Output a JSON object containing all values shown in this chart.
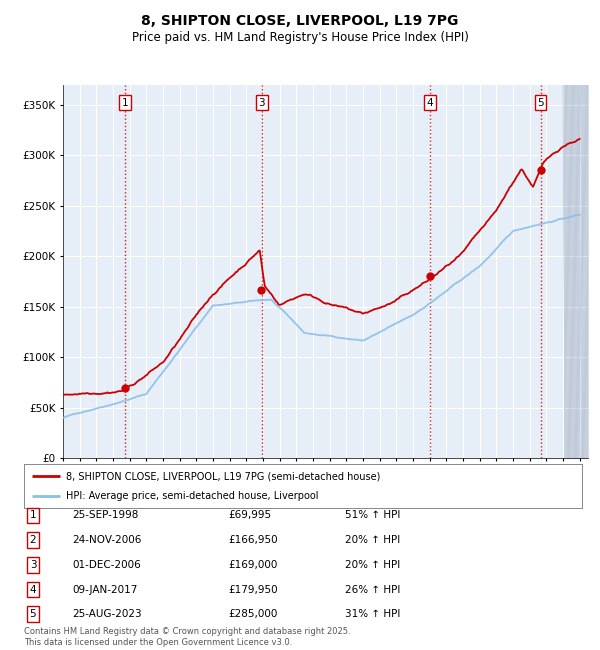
{
  "title": "8, SHIPTON CLOSE, LIVERPOOL, L19 7PG",
  "subtitle": "Price paid vs. HM Land Registry's House Price Index (HPI)",
  "legend_line1": "8, SHIPTON CLOSE, LIVERPOOL, L19 7PG (semi-detached house)",
  "legend_line2": "HPI: Average price, semi-detached house, Liverpool",
  "footer": "Contains HM Land Registry data © Crown copyright and database right 2025.\nThis data is licensed under the Open Government Licence v3.0.",
  "hpi_color": "#8ABFE8",
  "price_color": "#CC0000",
  "background_color": "#E6EEF8",
  "ylim": [
    0,
    370000
  ],
  "yticks": [
    0,
    50000,
    100000,
    150000,
    200000,
    250000,
    300000,
    350000
  ],
  "ytick_labels": [
    "£0",
    "£50K",
    "£100K",
    "£150K",
    "£200K",
    "£250K",
    "£300K",
    "£350K"
  ],
  "x_start_year": 1995,
  "x_end_year": 2026,
  "vline_sales": [
    {
      "num": 1,
      "year": 1998.73
    },
    {
      "num": 3,
      "year": 2006.92
    },
    {
      "num": 4,
      "year": 2017.03
    },
    {
      "num": 5,
      "year": 2023.65
    }
  ],
  "sale_dots": [
    {
      "year": 1998.73,
      "price": 69995
    },
    {
      "year": 2006.9,
      "price": 166950
    },
    {
      "year": 2017.03,
      "price": 179950
    },
    {
      "year": 2023.65,
      "price": 285000
    }
  ],
  "table_rows": [
    {
      "num": 1,
      "date": "25-SEP-1998",
      "price": "£69,995",
      "hpi": "51% ↑ HPI"
    },
    {
      "num": 2,
      "date": "24-NOV-2006",
      "price": "£166,950",
      "hpi": "20% ↑ HPI"
    },
    {
      "num": 3,
      "date": "01-DEC-2006",
      "price": "£169,000",
      "hpi": "20% ↑ HPI"
    },
    {
      "num": 4,
      "date": "09-JAN-2017",
      "price": "£179,950",
      "hpi": "26% ↑ HPI"
    },
    {
      "num": 5,
      "date": "25-AUG-2023",
      "price": "£285,000",
      "hpi": "31% ↑ HPI"
    }
  ]
}
